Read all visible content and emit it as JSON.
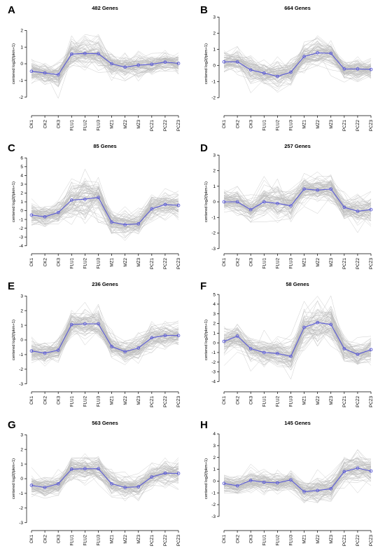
{
  "colors": {
    "mean_line": "#5b5bd6",
    "gene_lines": "#bcbcbc",
    "axis": "#000000"
  },
  "ylabel": "centered log2(fpkm+1)",
  "chart_data": [
    {
      "panel": "A",
      "type": "line",
      "title": "482 Genes",
      "categories": [
        "CK1",
        "CK2",
        "CK3",
        "FLU1",
        "FLU2",
        "FLU3",
        "MZ1",
        "MZ2",
        "MZ3",
        "PCZ1",
        "PCZ2",
        "PCZ3"
      ],
      "ylim": [
        -2.9,
        2.9
      ],
      "yticks": [
        -2,
        -1,
        0,
        1,
        2
      ],
      "mean": [
        -0.45,
        -0.55,
        -0.65,
        0.58,
        0.62,
        0.6,
        0.0,
        -0.2,
        -0.08,
        -0.03,
        0.1,
        0.02
      ],
      "spread": [
        0.35,
        0.35,
        0.4,
        0.45,
        0.5,
        0.45,
        0.4,
        0.4,
        0.4,
        0.35,
        0.35,
        0.35
      ]
    },
    {
      "panel": "B",
      "type": "line",
      "title": "664 Genes",
      "categories": [
        "CK1",
        "CK2",
        "CK3",
        "FLU1",
        "FLU2",
        "FLU3",
        "MZ1",
        "MZ2",
        "MZ3",
        "PCZ1",
        "PCZ2",
        "PCZ3"
      ],
      "ylim": [
        -2.9,
        3.1
      ],
      "yticks": [
        -2,
        -1,
        0,
        1,
        2,
        3
      ],
      "mean": [
        0.22,
        0.22,
        -0.28,
        -0.48,
        -0.68,
        -0.42,
        0.55,
        0.78,
        0.75,
        -0.22,
        -0.22,
        -0.25
      ],
      "spread": [
        0.4,
        0.4,
        0.45,
        0.45,
        0.5,
        0.45,
        0.45,
        0.5,
        0.45,
        0.35,
        0.35,
        0.35
      ]
    },
    {
      "panel": "C",
      "type": "line",
      "title": "85 Genes",
      "categories": [
        "CK1",
        "CK2",
        "CK3",
        "FLU1",
        "FLU2",
        "FLU3",
        "MZ1",
        "MZ2",
        "MZ3",
        "PCZ1",
        "PCZ2",
        "PCZ3"
      ],
      "ylim": [
        -4.5,
        6.5
      ],
      "yticks": [
        -4,
        -3,
        -2,
        -1,
        0,
        1,
        2,
        3,
        4,
        5,
        6
      ],
      "mean": [
        -0.5,
        -0.7,
        -0.2,
        1.2,
        1.3,
        1.5,
        -1.3,
        -1.6,
        -1.5,
        0.2,
        0.7,
        0.6
      ],
      "spread": [
        0.7,
        0.7,
        0.7,
        1.2,
        1.5,
        1.3,
        0.8,
        0.8,
        0.8,
        0.8,
        0.9,
        0.9
      ]
    },
    {
      "panel": "D",
      "type": "line",
      "title": "257 Genes",
      "categories": [
        "CK1",
        "CK2",
        "CK3",
        "FLU1",
        "FLU2",
        "FLU3",
        "MZ1",
        "MZ2",
        "MZ3",
        "PCZ1",
        "PCZ2",
        "PCZ3"
      ],
      "ylim": [
        -3.1,
        3.1
      ],
      "yticks": [
        -3,
        -2,
        -1,
        0,
        1,
        2,
        3
      ],
      "mean": [
        0.0,
        0.0,
        -0.5,
        0.0,
        -0.1,
        -0.25,
        0.82,
        0.75,
        0.82,
        -0.35,
        -0.6,
        -0.5
      ],
      "spread": [
        0.4,
        0.4,
        0.45,
        0.6,
        0.7,
        0.6,
        0.45,
        0.5,
        0.45,
        0.45,
        0.5,
        0.5
      ]
    },
    {
      "panel": "E",
      "type": "line",
      "title": "236 Genes",
      "categories": [
        "CK1",
        "CK2",
        "CK3",
        "FLU1",
        "FLU2",
        "FLU3",
        "MZ1",
        "MZ2",
        "MZ3",
        "PCZ1",
        "PCZ2",
        "PCZ3"
      ],
      "ylim": [
        -3.3,
        3.3
      ],
      "yticks": [
        -3,
        -2,
        -1,
        0,
        1,
        2,
        3
      ],
      "mean": [
        -0.75,
        -0.9,
        -0.7,
        1.05,
        1.1,
        1.1,
        -0.45,
        -0.8,
        -0.55,
        0.15,
        0.3,
        0.3
      ],
      "spread": [
        0.4,
        0.4,
        0.4,
        0.55,
        0.6,
        0.55,
        0.45,
        0.45,
        0.45,
        0.45,
        0.45,
        0.45
      ]
    },
    {
      "panel": "F",
      "type": "line",
      "title": "58 Genes",
      "categories": [
        "CK1",
        "CK2",
        "CK3",
        "FLU1",
        "FLU2",
        "FLU3",
        "MZ1",
        "MZ2",
        "MZ3",
        "PCZ1",
        "PCZ2",
        "PCZ3"
      ],
      "ylim": [
        -4.7,
        5.3
      ],
      "yticks": [
        -4,
        -3,
        -2,
        -1,
        0,
        1,
        2,
        3,
        4,
        5
      ],
      "mean": [
        0.15,
        0.7,
        -0.6,
        -1.0,
        -1.1,
        -1.4,
        1.6,
        2.1,
        1.9,
        -0.6,
        -1.2,
        -0.7
      ],
      "spread": [
        0.7,
        0.8,
        0.7,
        0.8,
        0.8,
        0.8,
        1.0,
        1.2,
        1.1,
        0.7,
        0.8,
        0.7
      ]
    },
    {
      "panel": "G",
      "type": "line",
      "title": "563 Genes",
      "categories": [
        "CK1",
        "CK2",
        "CK3",
        "FLU1",
        "FLU2",
        "FLU3",
        "MZ1",
        "MZ2",
        "MZ3",
        "PCZ1",
        "PCZ2",
        "PCZ3"
      ],
      "ylim": [
        -3.3,
        3.3
      ],
      "yticks": [
        -3,
        -2,
        -1,
        0,
        1,
        2,
        3
      ],
      "mean": [
        -0.45,
        -0.6,
        -0.35,
        0.65,
        0.68,
        0.68,
        -0.35,
        -0.6,
        -0.55,
        0.12,
        0.38,
        0.36
      ],
      "spread": [
        0.35,
        0.35,
        0.4,
        0.45,
        0.5,
        0.45,
        0.4,
        0.4,
        0.4,
        0.4,
        0.45,
        0.45
      ]
    },
    {
      "panel": "H",
      "type": "line",
      "title": "145 Genes",
      "categories": [
        "CK1",
        "CK2",
        "CK3",
        "FLU1",
        "FLU2",
        "FLU3",
        "MZ1",
        "MZ2",
        "MZ3",
        "PCZ1",
        "PCZ2",
        "PCZ3"
      ],
      "ylim": [
        -3.9,
        4.3
      ],
      "yticks": [
        -3,
        -2,
        -1,
        0,
        1,
        2,
        3,
        4
      ],
      "mean": [
        -0.2,
        -0.4,
        0.05,
        -0.1,
        -0.15,
        0.1,
        -0.9,
        -0.8,
        -0.65,
        0.8,
        1.1,
        0.85
      ],
      "spread": [
        0.45,
        0.45,
        0.45,
        0.45,
        0.45,
        0.45,
        0.55,
        0.6,
        0.6,
        0.65,
        0.75,
        0.65
      ]
    }
  ]
}
